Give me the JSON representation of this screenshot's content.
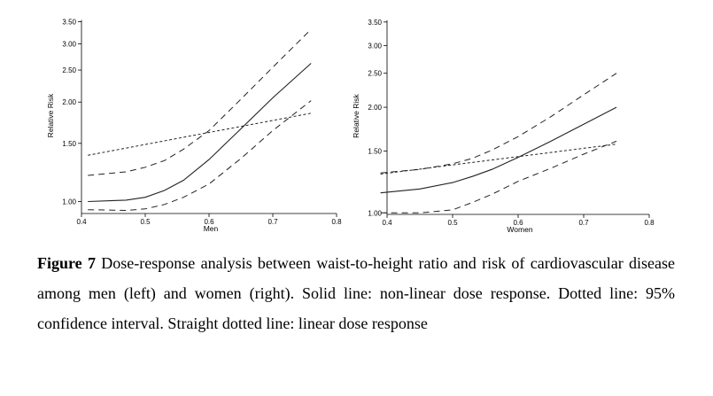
{
  "chart_data": [
    {
      "type": "line",
      "panel": "left",
      "xlabel": "Men",
      "ylabel": "Relative Risk",
      "xlim": [
        0.4,
        0.8
      ],
      "ylim": [
        0.92,
        3.6
      ],
      "y_scale": "log",
      "xticks": [
        0.4,
        0.5,
        0.6,
        0.7,
        0.8
      ],
      "xtick_labels": [
        "0.4",
        "0.5",
        "0.6",
        "0.7",
        "0.8"
      ],
      "yticks": [
        1.0,
        1.5,
        2.0,
        2.5,
        3.0,
        3.5
      ],
      "ytick_labels": [
        "1.00",
        "1.50",
        "2.00",
        "2.50",
        "3.00",
        "3.50"
      ],
      "grid": false,
      "series": [
        {
          "style": "solid",
          "x": [
            0.41,
            0.47,
            0.5,
            0.53,
            0.56,
            0.6,
            0.65,
            0.7,
            0.76
          ],
          "y": [
            1.0,
            1.01,
            1.03,
            1.08,
            1.16,
            1.34,
            1.66,
            2.06,
            2.62
          ]
        },
        {
          "style": "dashed",
          "x": [
            0.41,
            0.47,
            0.5,
            0.53,
            0.56,
            0.6,
            0.65,
            0.7,
            0.76
          ],
          "y": [
            1.2,
            1.23,
            1.27,
            1.33,
            1.44,
            1.64,
            2.04,
            2.55,
            3.32
          ]
        },
        {
          "style": "dashed",
          "x": [
            0.41,
            0.47,
            0.5,
            0.53,
            0.56,
            0.6,
            0.65,
            0.7,
            0.76
          ],
          "y": [
            0.945,
            0.94,
            0.95,
            0.98,
            1.03,
            1.13,
            1.35,
            1.64,
            2.02
          ]
        },
        {
          "style": "dotted",
          "x": [
            0.41,
            0.76
          ],
          "y": [
            1.38,
            1.85
          ]
        }
      ]
    },
    {
      "type": "line",
      "panel": "right",
      "xlabel": "Women",
      "ylabel": "Relative Risk",
      "xlim": [
        0.4,
        0.8
      ],
      "ylim": [
        0.99,
        3.6
      ],
      "y_scale": "log",
      "xticks": [
        0.4,
        0.5,
        0.6,
        0.7,
        0.8
      ],
      "xtick_labels": [
        "0.4",
        "0.5",
        "0.6",
        "0.7",
        "0.8"
      ],
      "yticks": [
        1.0,
        1.5,
        2.0,
        2.5,
        3.0,
        3.5
      ],
      "ytick_labels": [
        "1.00",
        "1.50",
        "2.00",
        "2.50",
        "3.00",
        "3.50"
      ],
      "grid": false,
      "series": [
        {
          "style": "solid",
          "x": [
            0.39,
            0.45,
            0.5,
            0.53,
            0.56,
            0.6,
            0.65,
            0.7,
            0.75
          ],
          "y": [
            1.14,
            1.17,
            1.22,
            1.27,
            1.33,
            1.44,
            1.6,
            1.79,
            2.0
          ]
        },
        {
          "style": "dashed",
          "x": [
            0.39,
            0.45,
            0.5,
            0.53,
            0.56,
            0.6,
            0.65,
            0.7,
            0.75
          ],
          "y": [
            1.3,
            1.33,
            1.38,
            1.43,
            1.51,
            1.65,
            1.88,
            2.17,
            2.5
          ]
        },
        {
          "style": "dashed",
          "x": [
            0.39,
            0.45,
            0.5,
            0.53,
            0.56,
            0.6,
            0.65,
            0.7,
            0.75
          ],
          "y": [
            1.0,
            1.0,
            1.02,
            1.07,
            1.13,
            1.23,
            1.34,
            1.47,
            1.6
          ]
        },
        {
          "style": "dotted",
          "x": [
            0.39,
            0.75
          ],
          "y": [
            1.29,
            1.57
          ]
        }
      ]
    }
  ],
  "caption": {
    "label": "Figure 7",
    "text": " Dose-response analysis between waist-to-height ratio and risk of cardiovascular disease among men (left) and women (right). Solid line: non-linear dose response. Dotted line: 95% confidence interval. Straight dotted line: linear dose response"
  }
}
